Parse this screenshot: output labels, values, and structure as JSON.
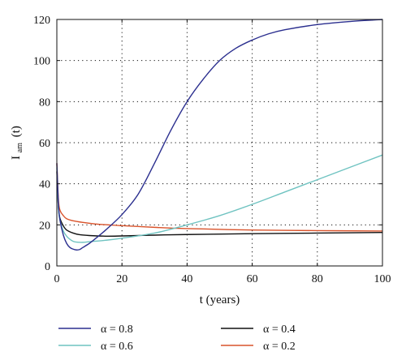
{
  "chart_data": {
    "type": "line",
    "xlabel": "t (years)",
    "ylabel_main": "I",
    "ylabel_sub": "am",
    "ylabel_suffix": "(t)",
    "xlim": [
      0,
      100
    ],
    "ylim": [
      0,
      120
    ],
    "xticks": [
      0,
      20,
      40,
      60,
      80,
      100
    ],
    "yticks": [
      0,
      20,
      40,
      60,
      80,
      100,
      120
    ],
    "grid": true,
    "legend_position": "below",
    "series": [
      {
        "name": "α = 0.8",
        "color": "#2b2f8f",
        "points": [
          [
            0,
            50
          ],
          [
            0.5,
            30
          ],
          [
            1,
            22
          ],
          [
            2,
            15
          ],
          [
            3,
            11
          ],
          [
            4,
            9
          ],
          [
            5,
            8.2
          ],
          [
            6,
            7.8
          ],
          [
            7,
            8
          ],
          [
            8,
            9
          ],
          [
            10,
            11
          ],
          [
            12,
            13.5
          ],
          [
            15,
            17.5
          ],
          [
            20,
            25
          ],
          [
            25,
            35
          ],
          [
            30,
            50
          ],
          [
            35,
            66
          ],
          [
            40,
            80
          ],
          [
            45,
            91
          ],
          [
            50,
            100
          ],
          [
            55,
            106
          ],
          [
            60,
            110
          ],
          [
            65,
            113
          ],
          [
            70,
            115
          ],
          [
            80,
            117.5
          ],
          [
            90,
            119
          ],
          [
            100,
            120
          ]
        ]
      },
      {
        "name": "α = 0.6",
        "color": "#6fc3c1",
        "points": [
          [
            0,
            48
          ],
          [
            0.5,
            28
          ],
          [
            1,
            22
          ],
          [
            2,
            17
          ],
          [
            3,
            14.5
          ],
          [
            4,
            13
          ],
          [
            5,
            12
          ],
          [
            6,
            11.6
          ],
          [
            8,
            11.5
          ],
          [
            10,
            11.8
          ],
          [
            15,
            12.5
          ],
          [
            20,
            13.5
          ],
          [
            30,
            16
          ],
          [
            40,
            20
          ],
          [
            50,
            24.5
          ],
          [
            60,
            30
          ],
          [
            70,
            36
          ],
          [
            80,
            42
          ],
          [
            90,
            48
          ],
          [
            100,
            54
          ]
        ]
      },
      {
        "name": "α = 0.4",
        "color": "#111111",
        "points": [
          [
            0,
            46
          ],
          [
            0.5,
            28
          ],
          [
            1,
            23
          ],
          [
            2,
            19.5
          ],
          [
            3,
            17.5
          ],
          [
            5,
            16
          ],
          [
            7,
            15.2
          ],
          [
            10,
            14.8
          ],
          [
            15,
            14.5
          ],
          [
            20,
            14.6
          ],
          [
            30,
            15
          ],
          [
            40,
            15.3
          ],
          [
            60,
            15.7
          ],
          [
            80,
            16
          ],
          [
            100,
            16.3
          ]
        ]
      },
      {
        "name": "α = 0.2",
        "color": "#d9532b",
        "points": [
          [
            0,
            50
          ],
          [
            0.5,
            32
          ],
          [
            1,
            27
          ],
          [
            2,
            24.5
          ],
          [
            3,
            23
          ],
          [
            5,
            22
          ],
          [
            8,
            21.2
          ],
          [
            12,
            20.4
          ],
          [
            20,
            19.6
          ],
          [
            30,
            18.8
          ],
          [
            40,
            18.2
          ],
          [
            60,
            17.5
          ],
          [
            80,
            17.2
          ],
          [
            100,
            17
          ]
        ]
      }
    ]
  }
}
